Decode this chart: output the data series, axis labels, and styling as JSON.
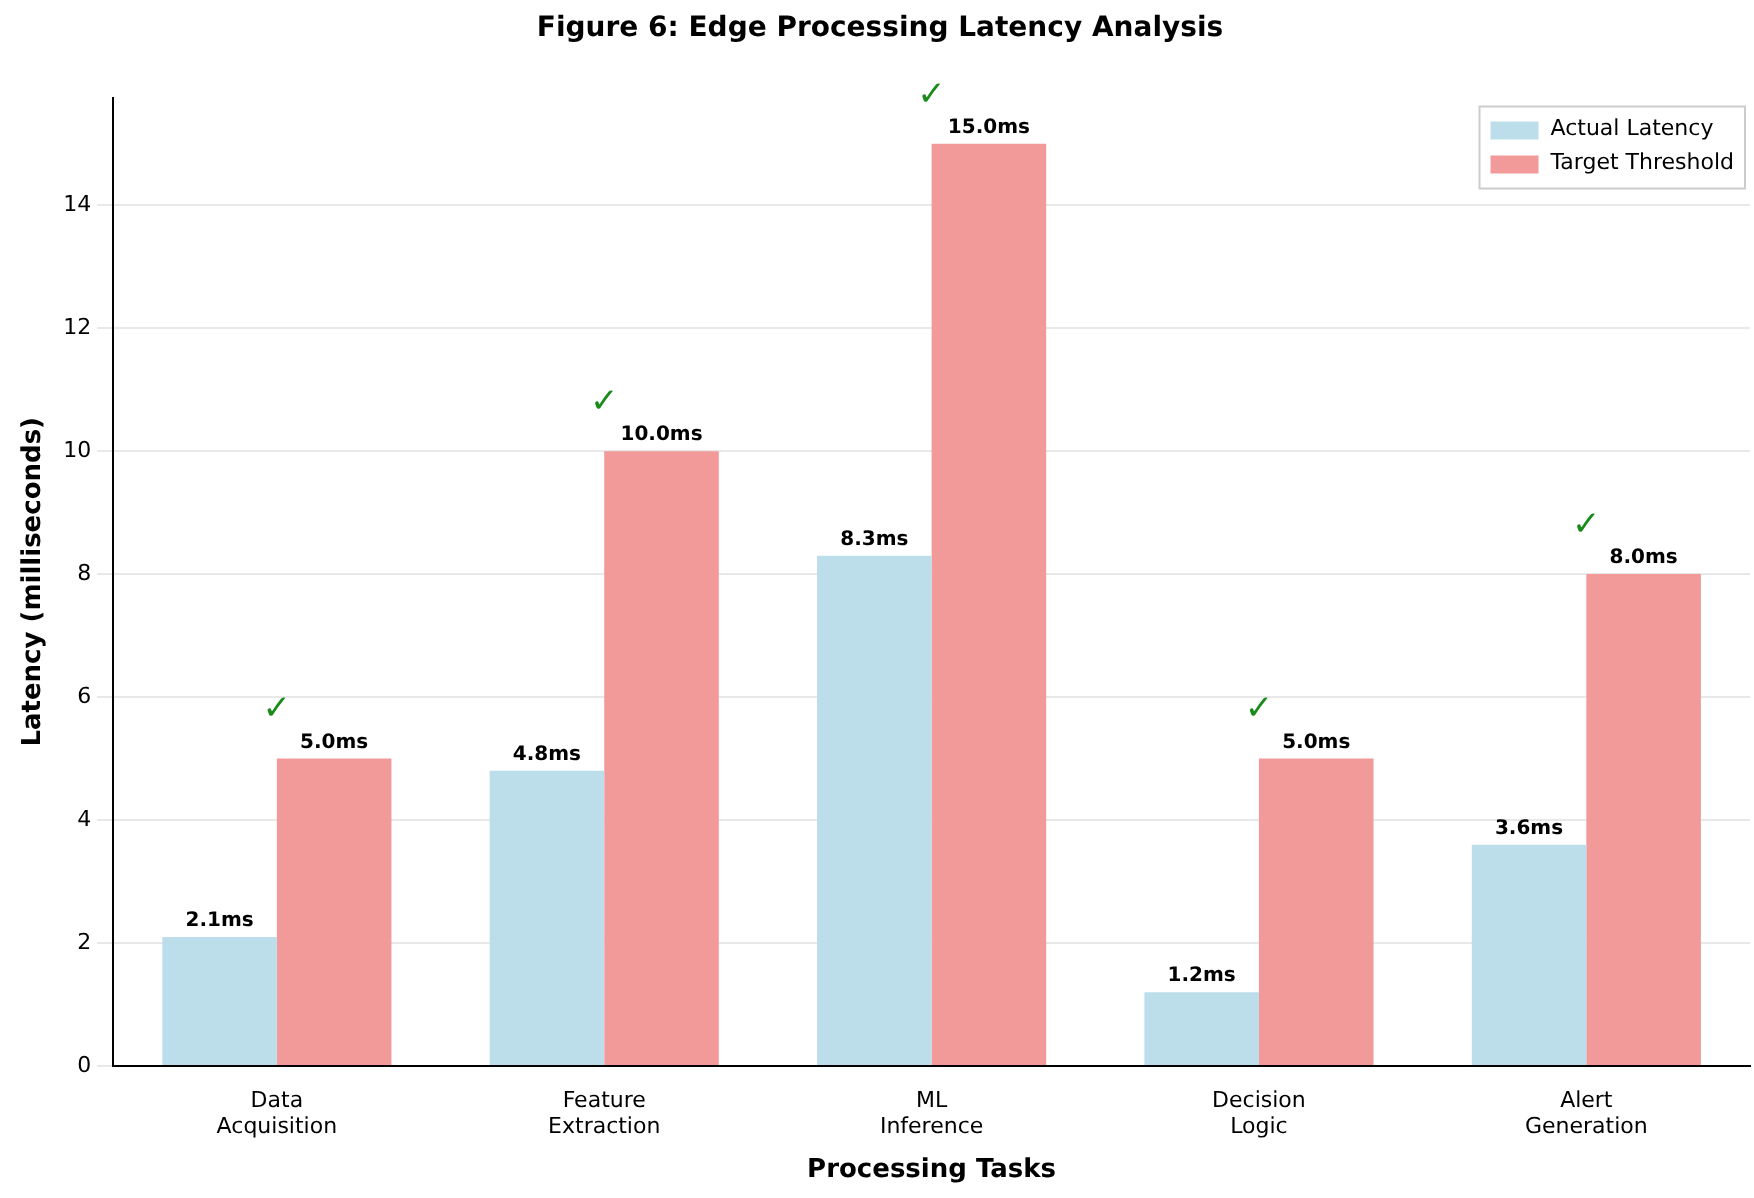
{
  "chart_data": {
    "type": "bar",
    "title": "Figure 6: Edge Processing Latency Analysis",
    "xlabel": "Processing Tasks",
    "ylabel": "Latency (milliseconds)",
    "categories": [
      "Data\nAcquisition",
      "Feature\nExtraction",
      "ML\nInference",
      "Decision\nLogic",
      "Alert\nGeneration"
    ],
    "series": [
      {
        "name": "Actual Latency",
        "color": "#bcdeea",
        "values": [
          2.1,
          4.8,
          8.3,
          1.2,
          3.6
        ],
        "value_labels": [
          "2.1ms",
          "4.8ms",
          "8.3ms",
          "1.2ms",
          "3.6ms"
        ]
      },
      {
        "name": "Target Threshold",
        "color": "#f29a99",
        "values": [
          5.0,
          10.0,
          15.0,
          5.0,
          8.0
        ],
        "value_labels": [
          "5.0ms",
          "10.0ms",
          "15.0ms",
          "5.0ms",
          "8.0ms"
        ]
      }
    ],
    "ylim": [
      0,
      15.75
    ],
    "yticks": [
      0,
      2,
      4,
      6,
      8,
      10,
      12,
      14
    ],
    "grid": "y",
    "legend": "top right",
    "annotations": [
      "✓",
      "✓",
      "✓",
      "✓",
      "✓"
    ]
  }
}
